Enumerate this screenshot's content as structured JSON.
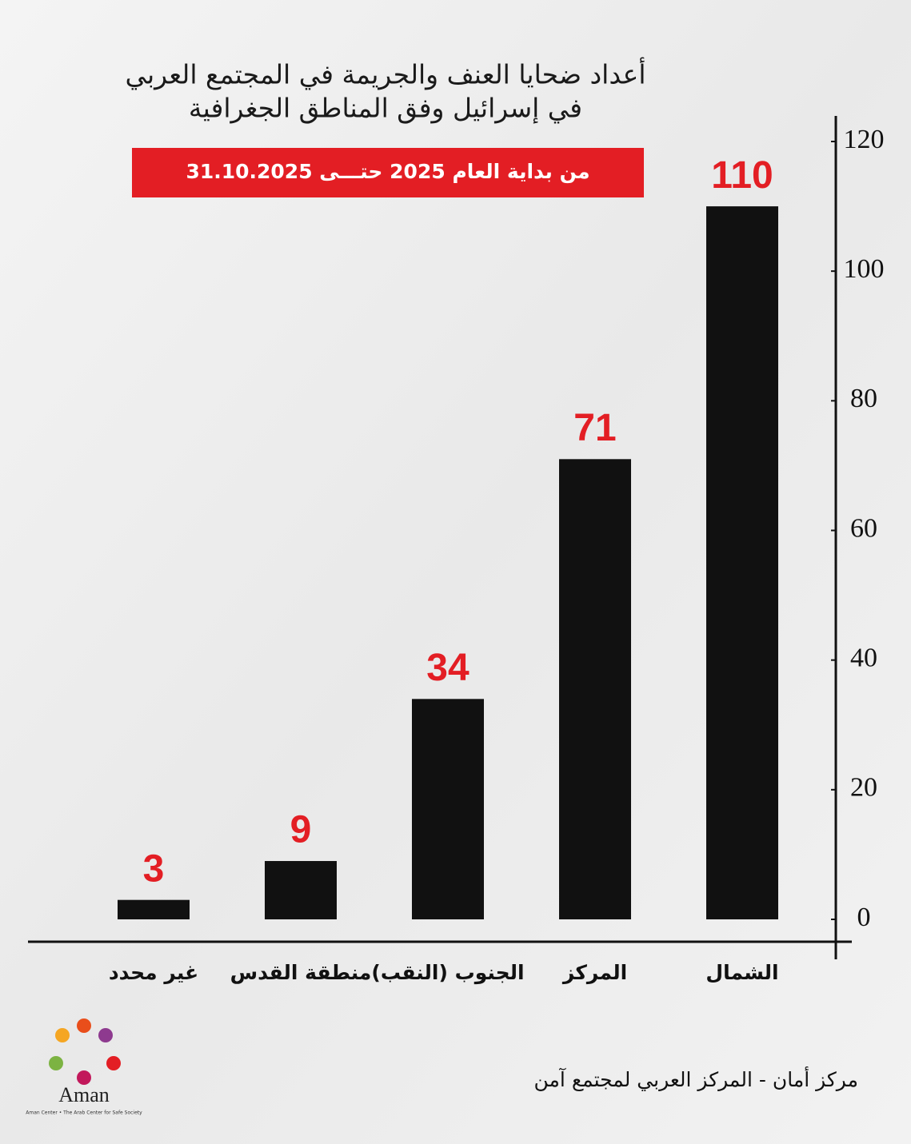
{
  "chart_data": {
    "type": "bar",
    "title_lines": [
      "أعداد ضحايا العنف والجريمة في المجتمع العربي",
      "في إسرائيل وفق المناطق الجغرافية"
    ],
    "subtitle": "من بداية العام 2025 حتـــى 31.10.2025",
    "categories": [
      "غير محدد",
      "منطقة القدس",
      "الجنوب (النقب)",
      "المركز",
      "الشمال"
    ],
    "values": [
      3,
      9,
      34,
      71,
      110
    ],
    "color": "#111111",
    "value_label_color": "#e31e24",
    "ylim": [
      0,
      120
    ],
    "yticks": [
      0,
      20,
      40,
      60,
      80,
      100,
      120
    ],
    "axis_side": "right"
  },
  "footer": {
    "text": "مركز أمان - المركز العربي لمجتمع آمن",
    "logo": "Aman",
    "logo_caption": "Aman Center • The Arab Center for Safe Society"
  }
}
